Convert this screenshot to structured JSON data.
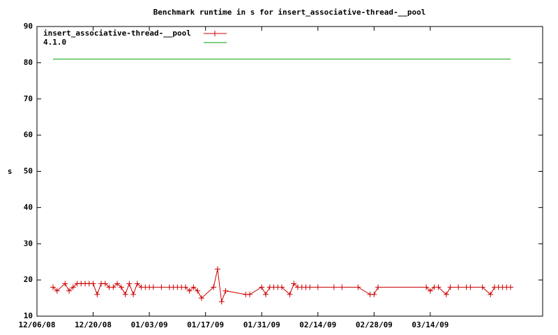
{
  "chart_data": {
    "type": "line",
    "title": "Benchmark runtime in s for insert_associative-thread-__pool",
    "y_label": "s",
    "xlim": [
      "12/06/08",
      "04/11/09"
    ],
    "xticks": [
      "12/06/08",
      "12/20/08",
      "01/03/09",
      "01/17/09",
      "01/31/09",
      "02/14/09",
      "02/28/09",
      "03/14/09"
    ],
    "ylim": [
      10,
      90
    ],
    "yticks": [
      10,
      20,
      30,
      40,
      50,
      60,
      70,
      80,
      90
    ],
    "legend": "top-left",
    "series": [
      {
        "name": "insert_associative-thread-__pool",
        "color": "#cc0000",
        "marker": "+",
        "x": [
          "12/10/08",
          "12/11/08",
          "12/13/08",
          "12/14/08",
          "12/15/08",
          "12/16/08",
          "12/17/08",
          "12/18/08",
          "12/19/08",
          "12/20/08",
          "12/21/08",
          "12/22/08",
          "12/23/08",
          "12/24/08",
          "12/25/08",
          "12/26/08",
          "12/27/08",
          "12/28/08",
          "12/29/08",
          "12/30/08",
          "12/31/08",
          "01/01/09",
          "01/02/09",
          "01/03/09",
          "01/04/09",
          "01/06/09",
          "01/08/09",
          "01/09/09",
          "01/10/09",
          "01/11/09",
          "01/12/09",
          "01/13/09",
          "01/14/09",
          "01/15/09",
          "01/16/09",
          "01/19/09",
          "01/20/09",
          "01/21/09",
          "01/22/09",
          "01/27/09",
          "01/28/09",
          "01/31/09",
          "02/01/09",
          "02/02/09",
          "02/03/09",
          "02/04/09",
          "02/05/09",
          "02/07/09",
          "02/08/09",
          "02/09/09",
          "02/10/09",
          "02/11/09",
          "02/12/09",
          "02/14/09",
          "02/18/09",
          "02/20/09",
          "02/24/09",
          "02/27/09",
          "02/28/09",
          "03/01/09",
          "03/13/09",
          "03/14/09",
          "03/15/09",
          "03/16/09",
          "03/18/09",
          "03/19/09",
          "03/21/09",
          "03/23/09",
          "03/24/09",
          "03/27/09",
          "03/29/09",
          "03/30/09",
          "03/31/09",
          "04/01/09",
          "04/02/09",
          "04/03/09"
        ],
        "values": [
          18,
          17,
          19,
          17,
          18,
          19,
          19,
          19,
          19,
          19,
          16,
          19,
          19,
          18,
          18,
          19,
          18,
          16,
          19,
          16,
          19,
          18,
          18,
          18,
          18,
          18,
          18,
          18,
          18,
          18,
          18,
          17,
          18,
          17,
          15,
          18,
          23,
          14,
          17,
          16,
          16,
          18,
          16,
          18,
          18,
          18,
          18,
          16,
          19,
          18,
          18,
          18,
          18,
          18,
          18,
          18,
          18,
          16,
          16,
          18,
          18,
          17,
          18,
          18,
          16,
          18,
          18,
          18,
          18,
          18,
          16,
          18,
          18,
          18,
          18,
          18
        ]
      },
      {
        "name": "4.1.0",
        "color": "#00a000",
        "x": [
          "12/10/08",
          "04/03/09"
        ],
        "values": [
          81,
          81
        ]
      }
    ]
  }
}
